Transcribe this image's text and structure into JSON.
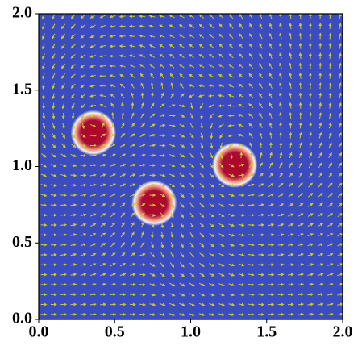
{
  "chart_data": {
    "type": "field",
    "x": [
      0.36,
      0.76,
      1.29
    ],
    "values": [
      1.22,
      0.76,
      1.01
    ],
    "radius": [
      0.15,
      0.15,
      0.15
    ],
    "background_color": "#3b4cc0",
    "color": "#b40426",
    "arrow_color": "#c8c832",
    "xlim": [
      0,
      2
    ],
    "ylim": [
      0,
      2
    ],
    "xticks": [
      {
        "value": 0,
        "label": "0.0"
      },
      {
        "value": 0.5,
        "label": "0.5"
      },
      {
        "value": 1,
        "label": "1.0"
      },
      {
        "value": 1.5,
        "label": "1.5"
      },
      {
        "value": 2,
        "label": "2.0"
      }
    ],
    "yticks": [
      {
        "value": 0,
        "label": "0.0"
      },
      {
        "value": 0.5,
        "label": "0.5"
      },
      {
        "value": 1,
        "label": "1.0"
      },
      {
        "value": 1.5,
        "label": "1.5"
      },
      {
        "value": 2,
        "label": "2.0"
      }
    ]
  }
}
